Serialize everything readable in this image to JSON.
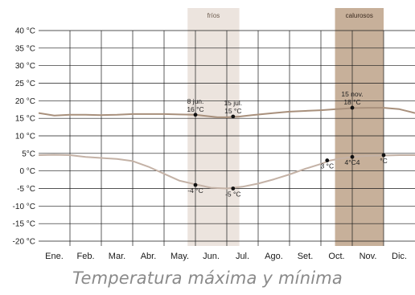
{
  "chart_data": {
    "type": "line",
    "title": "Temperatura máxima y mínima",
    "xlabel": "",
    "ylabel": "",
    "unit": "°C",
    "ylim": [
      -20,
      40
    ],
    "yticks": [
      40,
      35,
      30,
      25,
      20,
      15,
      10,
      5,
      0,
      -5,
      -10,
      -15,
      -20
    ],
    "ytick_labels": [
      "40 °C",
      "35 °C",
      "30 °C",
      "25 °C",
      "20 °C",
      "15 °C",
      "10 °C",
      "5°C",
      "0 °C",
      "-5 °C",
      "-10 °C",
      "-15 °C",
      "-20 °C"
    ],
    "categories": [
      "Ene.",
      "Feb.",
      "Mar.",
      "Abr.",
      "May.",
      "Jun.",
      "Jul.",
      "Ago.",
      "Set.",
      "Oct.",
      "Nov.",
      "Dic."
    ],
    "grid": true,
    "series": [
      {
        "name": "",
        "color": "#a8907c",
        "x": [
          0.0,
          0.5,
          1.0,
          1.5,
          2.0,
          2.5,
          3.0,
          3.5,
          4.0,
          4.5,
          5.0,
          5.3,
          5.7,
          6.0,
          6.4,
          6.8,
          7.5,
          8.0,
          8.5,
          9.0,
          9.5,
          10.0,
          10.5,
          11.0,
          11.5,
          12.0
        ],
        "values": [
          16.5,
          15.8,
          16.0,
          16.0,
          15.9,
          16.0,
          16.2,
          16.2,
          16.2,
          16.1,
          16.0,
          15.7,
          15.3,
          15.3,
          15.5,
          15.9,
          16.5,
          16.9,
          17.1,
          17.3,
          17.6,
          17.9,
          18.0,
          18.0,
          17.6,
          16.5
        ]
      },
      {
        "name": "",
        "color": "#c4b2a6",
        "x": [
          0.0,
          0.5,
          1.0,
          1.5,
          2.0,
          2.5,
          3.0,
          3.5,
          4.0,
          4.5,
          5.0,
          5.5,
          6.0,
          6.5,
          7.0,
          7.5,
          8.0,
          8.5,
          9.0,
          9.3,
          9.6,
          10.0,
          10.5,
          11.0,
          11.5,
          12.0
        ],
        "values": [
          4.5,
          4.6,
          4.5,
          4.0,
          3.7,
          3.4,
          2.8,
          1.2,
          -0.8,
          -2.8,
          -3.8,
          -4.8,
          -5.0,
          -4.5,
          -3.6,
          -2.4,
          -1.0,
          0.6,
          2.0,
          3.0,
          3.5,
          4.0,
          4.3,
          4.4,
          4.5,
          4.5
        ]
      }
    ],
    "points": [
      {
        "x": 5.0,
        "y": 16,
        "label_lines": [
          "8 jun.",
          "16 °C"
        ]
      },
      {
        "x": 6.2,
        "y": 15.5,
        "label_lines": [
          "15 jul.",
          "15 °C"
        ]
      },
      {
        "x": 10.0,
        "y": 18,
        "label_lines": [
          "15 nov.",
          "18 °C"
        ]
      },
      {
        "x": 5.0,
        "y": -4,
        "label_lines": [
          "-4 °C"
        ]
      },
      {
        "x": 6.2,
        "y": -5,
        "label_lines": [
          "-5 °C"
        ]
      },
      {
        "x": 9.2,
        "y": 3,
        "label_lines": [
          "3 °C"
        ]
      },
      {
        "x": 10.0,
        "y": 4,
        "label_lines": [
          "4°C4"
        ]
      },
      {
        "x": 11.0,
        "y": 4.5,
        "label_lines": [
          "°C"
        ]
      }
    ],
    "bands": [
      {
        "label": "fríos",
        "x_start": 4.75,
        "x_end": 6.4,
        "color": "#ece4de"
      },
      {
        "label": "calurosos",
        "x_start": 9.45,
        "x_end": 11.0,
        "color": "#c7b09a"
      }
    ]
  }
}
